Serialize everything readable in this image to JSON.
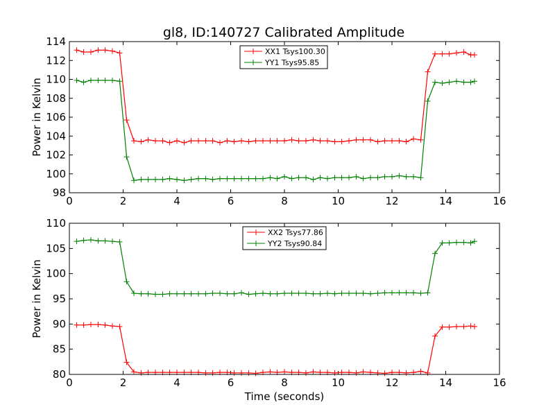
{
  "title": "gl8, ID:140727 Calibrated Amplitude",
  "chart_data": [
    {
      "type": "line",
      "xlabel": "",
      "ylabel": "Power in Kelvin",
      "xlim": [
        0,
        16
      ],
      "ylim": [
        98,
        114
      ],
      "xticks": [
        0,
        2,
        4,
        6,
        8,
        10,
        12,
        14,
        16
      ],
      "yticks": [
        98,
        100,
        102,
        104,
        106,
        108,
        110,
        112,
        114
      ],
      "legend_position": "top-center",
      "x": [
        0.27,
        0.53,
        0.8,
        1.07,
        1.33,
        1.6,
        1.87,
        2.13,
        2.4,
        2.67,
        2.93,
        3.2,
        3.47,
        3.73,
        4.0,
        4.27,
        4.53,
        4.8,
        5.07,
        5.33,
        5.6,
        5.87,
        6.13,
        6.4,
        6.67,
        6.93,
        7.2,
        7.47,
        7.73,
        8.0,
        8.27,
        8.53,
        8.8,
        9.07,
        9.33,
        9.6,
        9.87,
        10.13,
        10.4,
        10.67,
        10.93,
        11.2,
        11.47,
        11.73,
        12.0,
        12.27,
        12.53,
        12.8,
        13.07,
        13.33,
        13.6,
        13.87,
        14.13,
        14.4,
        14.67,
        14.93,
        15.07
      ],
      "series": [
        {
          "name": "XX1 Tsys100.30",
          "color": "#ff0000",
          "values": [
            113.1,
            112.9,
            112.9,
            113.1,
            113.1,
            113.0,
            112.8,
            105.7,
            103.5,
            103.4,
            103.6,
            103.5,
            103.5,
            103.3,
            103.5,
            103.3,
            103.5,
            103.5,
            103.5,
            103.5,
            103.3,
            103.5,
            103.4,
            103.5,
            103.4,
            103.5,
            103.5,
            103.5,
            103.5,
            103.5,
            103.6,
            103.5,
            103.5,
            103.6,
            103.5,
            103.5,
            103.4,
            103.4,
            103.5,
            103.6,
            103.6,
            103.6,
            103.4,
            103.5,
            103.5,
            103.5,
            103.4,
            103.7,
            103.6,
            110.8,
            112.7,
            112.7,
            112.7,
            112.8,
            112.9,
            112.6,
            112.6
          ]
        },
        {
          "name": "YY1 Tsys95.85",
          "color": "#008000",
          "values": [
            109.9,
            109.7,
            109.9,
            109.9,
            109.9,
            109.9,
            109.8,
            101.8,
            99.3,
            99.4,
            99.4,
            99.4,
            99.4,
            99.5,
            99.4,
            99.3,
            99.4,
            99.5,
            99.5,
            99.4,
            99.5,
            99.5,
            99.5,
            99.5,
            99.5,
            99.5,
            99.5,
            99.6,
            99.5,
            99.7,
            99.5,
            99.6,
            99.6,
            99.4,
            99.6,
            99.5,
            99.6,
            99.6,
            99.6,
            99.7,
            99.5,
            99.6,
            99.6,
            99.7,
            99.7,
            99.8,
            99.7,
            99.7,
            99.6,
            107.7,
            109.7,
            109.6,
            109.7,
            109.8,
            109.7,
            109.7,
            109.8
          ]
        }
      ]
    },
    {
      "type": "line",
      "xlabel": "Time (seconds)",
      "ylabel": "Power in Kelvin",
      "xlim": [
        0,
        16
      ],
      "ylim": [
        80,
        110
      ],
      "xticks": [
        0,
        2,
        4,
        6,
        8,
        10,
        12,
        14,
        16
      ],
      "yticks": [
        80,
        85,
        90,
        95,
        100,
        105,
        110
      ],
      "legend_position": "top-center",
      "x": [
        0.27,
        0.53,
        0.8,
        1.07,
        1.33,
        1.6,
        1.87,
        2.13,
        2.4,
        2.67,
        2.93,
        3.2,
        3.47,
        3.73,
        4.0,
        4.27,
        4.53,
        4.8,
        5.07,
        5.33,
        5.6,
        5.87,
        6.13,
        6.4,
        6.67,
        6.93,
        7.2,
        7.47,
        7.73,
        8.0,
        8.27,
        8.53,
        8.8,
        9.07,
        9.33,
        9.6,
        9.87,
        10.13,
        10.4,
        10.67,
        10.93,
        11.2,
        11.47,
        11.73,
        12.0,
        12.27,
        12.53,
        12.8,
        13.07,
        13.33,
        13.6,
        13.87,
        14.13,
        14.4,
        14.67,
        14.93,
        15.07
      ],
      "series": [
        {
          "name": "XX2 Tsys77.86",
          "color": "#ff0000",
          "values": [
            89.8,
            89.8,
            89.9,
            89.9,
            89.8,
            89.6,
            89.5,
            82.4,
            80.5,
            80.3,
            80.4,
            80.4,
            80.4,
            80.4,
            80.4,
            80.4,
            80.4,
            80.4,
            80.3,
            80.3,
            80.4,
            80.4,
            80.3,
            80.3,
            80.3,
            80.2,
            80.4,
            80.5,
            80.4,
            80.5,
            80.4,
            80.4,
            80.3,
            80.5,
            80.4,
            80.4,
            80.3,
            80.4,
            80.4,
            80.3,
            80.5,
            80.4,
            80.3,
            80.2,
            80.4,
            80.4,
            80.3,
            80.4,
            80.6,
            80.3,
            87.6,
            89.4,
            89.4,
            89.5,
            89.5,
            89.6,
            89.5
          ]
        },
        {
          "name": "YY2 Tsys90.84",
          "color": "#008000",
          "values": [
            106.4,
            106.6,
            106.7,
            106.5,
            106.5,
            106.4,
            106.3,
            98.4,
            96.1,
            96.0,
            96.0,
            95.9,
            95.9,
            96.0,
            96.0,
            96.0,
            96.0,
            96.0,
            96.0,
            96.1,
            96.1,
            96.0,
            96.0,
            96.2,
            95.9,
            96.0,
            96.1,
            96.0,
            96.0,
            96.1,
            96.1,
            96.1,
            96.1,
            96.0,
            96.0,
            96.1,
            96.0,
            96.1,
            96.1,
            96.1,
            96.1,
            96.0,
            96.1,
            96.2,
            96.2,
            96.2,
            96.2,
            96.2,
            96.1,
            96.2,
            104.0,
            106.1,
            106.1,
            106.2,
            106.2,
            106.1,
            106.4
          ]
        }
      ]
    }
  ]
}
